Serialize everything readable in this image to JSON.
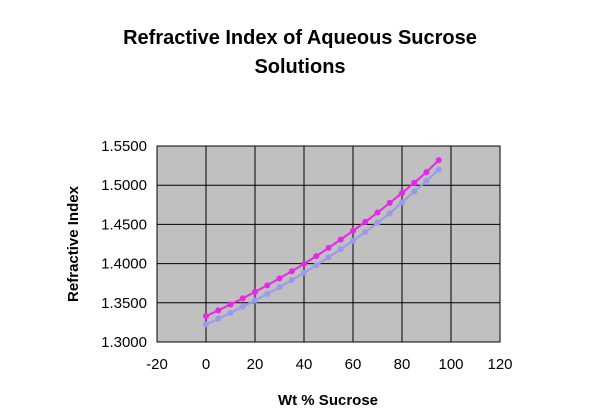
{
  "chart_data": {
    "type": "line",
    "title_lines": [
      "Refractive Index of Aqueous Sucrose",
      "Solutions"
    ],
    "xlabel": "Wt % Sucrose",
    "ylabel": "Refractive Index",
    "xlim": [
      -20,
      120
    ],
    "ylim": [
      1.3,
      1.55
    ],
    "x_ticks": [
      "-20",
      "0",
      "20",
      "40",
      "60",
      "80",
      "100",
      "120"
    ],
    "x_tick_values": [
      -20,
      0,
      20,
      40,
      60,
      80,
      100,
      120
    ],
    "y_ticks": [
      "1.3000",
      "1.3500",
      "1.4000",
      "1.4500",
      "1.5000",
      "1.5500"
    ],
    "y_tick_values": [
      1.3,
      1.35,
      1.4,
      1.45,
      1.5,
      1.55
    ],
    "grid": true,
    "plot_background": "#c0c0c0",
    "legend": "none",
    "series": [
      {
        "color": "#e628e6",
        "points": [
          [
            0,
            1.333
          ],
          [
            5,
            1.3403
          ],
          [
            10,
            1.3479
          ],
          [
            15,
            1.3557
          ],
          [
            20,
            1.3639
          ],
          [
            25,
            1.3723
          ],
          [
            30,
            1.3811
          ],
          [
            35,
            1.3902
          ],
          [
            40,
            1.3997
          ],
          [
            45,
            1.4096
          ],
          [
            50,
            1.42
          ],
          [
            55,
            1.4307
          ],
          [
            60,
            1.4418
          ],
          [
            65,
            1.4532
          ],
          [
            70,
            1.4651
          ],
          [
            75,
            1.4774
          ],
          [
            80,
            1.4901
          ],
          [
            85,
            1.5032
          ],
          [
            90,
            1.5167
          ],
          [
            95,
            1.532
          ]
        ]
      },
      {
        "color": "#9999f0",
        "points": [
          [
            0,
            1.3225
          ],
          [
            5,
            1.3296
          ],
          [
            10,
            1.3371
          ],
          [
            15,
            1.3449
          ],
          [
            20,
            1.353
          ],
          [
            25,
            1.3613
          ],
          [
            30,
            1.37
          ],
          [
            35,
            1.379
          ],
          [
            40,
            1.3883
          ],
          [
            45,
            1.3979
          ],
          [
            50,
            1.4079
          ],
          [
            55,
            1.4183
          ],
          [
            60,
            1.4291
          ],
          [
            65,
            1.4403
          ],
          [
            70,
            1.452
          ],
          [
            75,
            1.4641
          ],
          [
            80,
            1.478
          ],
          [
            85,
            1.492
          ],
          [
            90,
            1.5055
          ],
          [
            95,
            1.52
          ]
        ]
      }
    ]
  }
}
